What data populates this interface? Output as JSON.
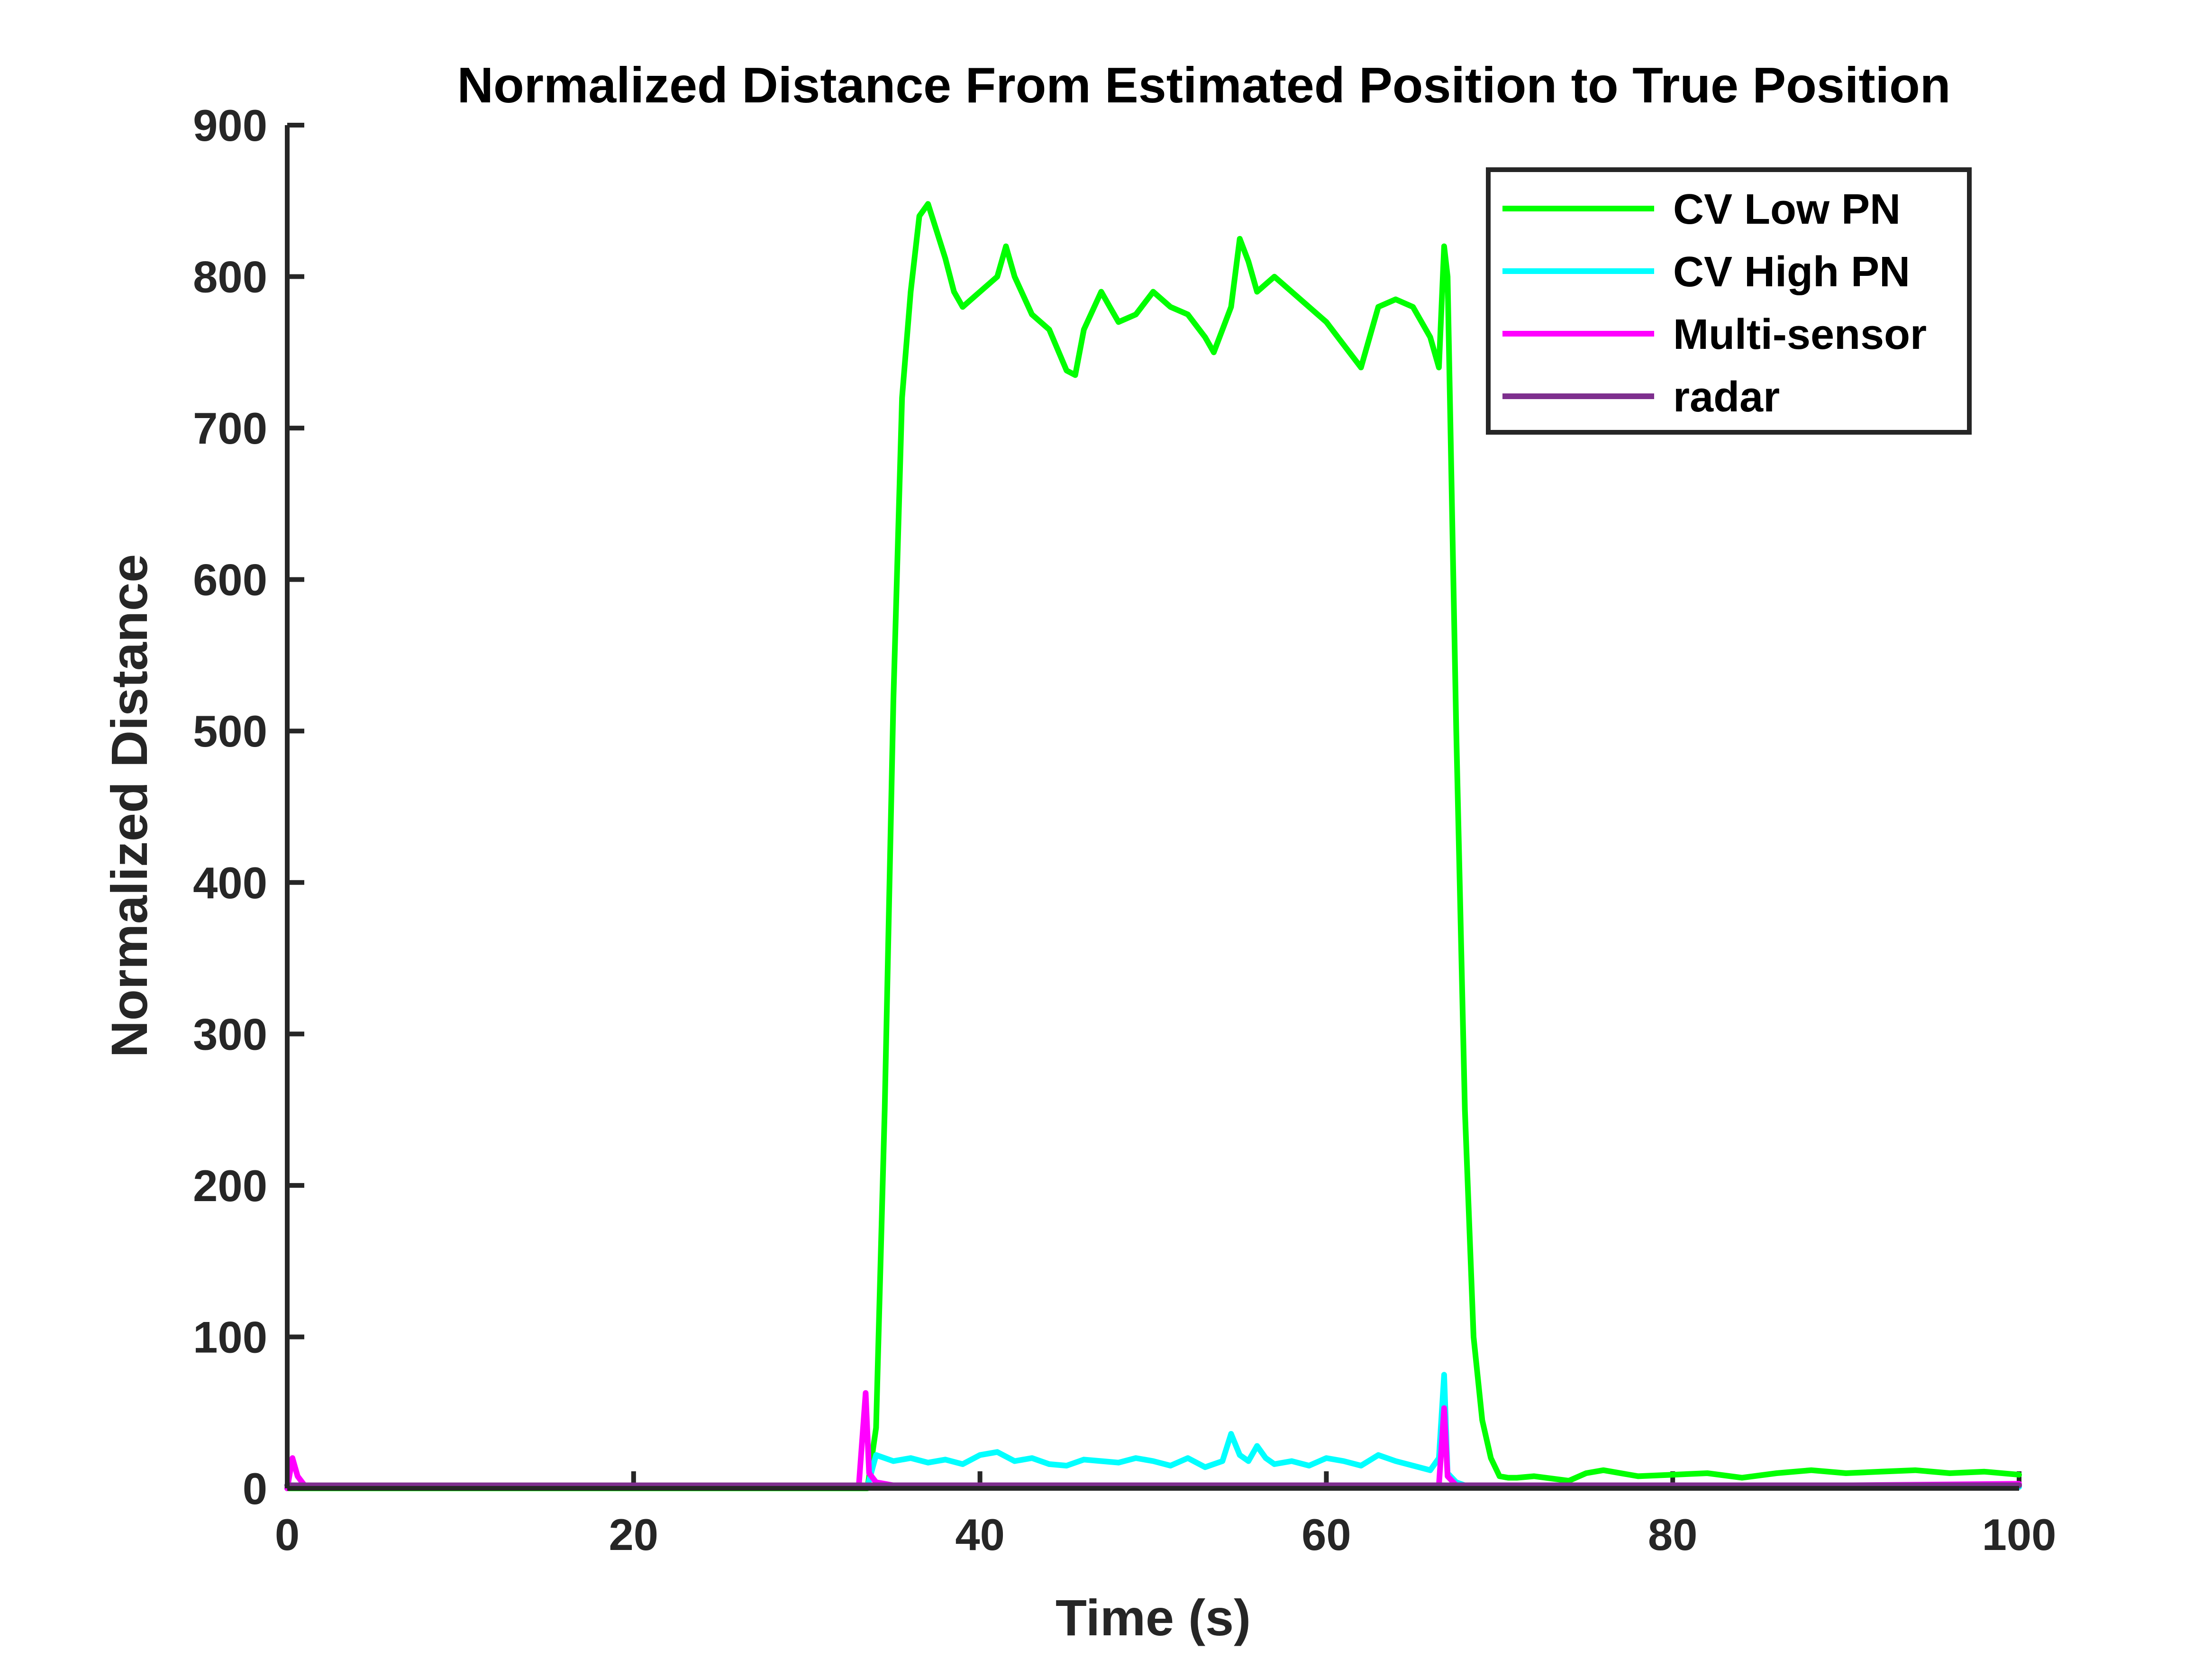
{
  "chart_data": {
    "type": "line",
    "title": "Normalized Distance From Estimated Position to True Position",
    "xlabel": "Time (s)",
    "ylabel": "Normalized Distance",
    "xlim": [
      0,
      100
    ],
    "ylim": [
      0,
      900
    ],
    "xticks": [
      0,
      20,
      40,
      60,
      80,
      100
    ],
    "yticks": [
      0,
      100,
      200,
      300,
      400,
      500,
      600,
      700,
      800,
      900
    ],
    "grid": false,
    "legend_position": "top-right",
    "series": [
      {
        "name": "CV Low PN",
        "color": "#00ff00",
        "x": [
          0,
          20,
          33.5,
          34.0,
          34.5,
          35.0,
          35.5,
          36.0,
          36.5,
          37.0,
          37.5,
          38.0,
          38.5,
          39.0,
          39.5,
          40.0,
          41.0,
          41.5,
          42.0,
          43.0,
          44.0,
          45.0,
          45.5,
          46.0,
          47.0,
          47.5,
          48.0,
          49.0,
          50.0,
          51.0,
          52.0,
          53.0,
          53.5,
          54.0,
          54.5,
          55.0,
          55.5,
          56.0,
          57.0,
          58.0,
          59.0,
          60.0,
          61.0,
          62.0,
          63.0,
          64.0,
          65.0,
          66.0,
          66.5,
          66.8,
          67.0,
          67.5,
          68.0,
          68.5,
          69.0,
          69.5,
          70.0,
          70.5,
          71.0,
          72.0,
          74.0,
          75.0,
          76.0,
          78.0,
          80.0,
          82.0,
          84.0,
          86.0,
          88.0,
          90.0,
          92.0,
          94.0,
          96.0,
          98.0,
          100.0
        ],
        "y": [
          0,
          0,
          0,
          40,
          250,
          520,
          720,
          790,
          840,
          848,
          830,
          812,
          790,
          780,
          785,
          790,
          800,
          820,
          800,
          775,
          765,
          738,
          735,
          765,
          790,
          780,
          770,
          775,
          790,
          780,
          775,
          760,
          750,
          765,
          780,
          825,
          810,
          790,
          800,
          790,
          780,
          770,
          755,
          740,
          780,
          785,
          780,
          760,
          740,
          820,
          800,
          500,
          250,
          100,
          45,
          20,
          8,
          7,
          7,
          8,
          5,
          10,
          12,
          8,
          9,
          10,
          7,
          10,
          12,
          10,
          11,
          12,
          10,
          11,
          9
        ]
      },
      {
        "name": "CV High PN",
        "color": "#00ffff",
        "x": [
          0,
          10,
          20,
          33.5,
          34.0,
          35.0,
          36.0,
          37.0,
          38.0,
          39.0,
          40.0,
          41.0,
          42.0,
          43.0,
          44.0,
          45.0,
          46.0,
          47.0,
          48.0,
          49.0,
          50.0,
          51.0,
          52.0,
          53.0,
          54.0,
          54.5,
          55.0,
          55.5,
          56.0,
          56.5,
          57.0,
          58.0,
          59.0,
          60.0,
          61.0,
          62.0,
          63.0,
          64.0,
          65.0,
          66.0,
          66.5,
          66.8,
          67.0,
          67.5,
          68.0,
          70.0,
          80.0,
          90.0,
          100.0
        ],
        "y": [
          2,
          1,
          1,
          1,
          22,
          18,
          20,
          17,
          19,
          16,
          22,
          24,
          18,
          20,
          16,
          15,
          19,
          18,
          17,
          20,
          18,
          15,
          20,
          14,
          18,
          36,
          22,
          18,
          28,
          20,
          16,
          18,
          15,
          20,
          18,
          15,
          22,
          18,
          15,
          12,
          20,
          75,
          10,
          4,
          2,
          1,
          1,
          1,
          1
        ]
      },
      {
        "name": "Multi-sensor",
        "color": "#ff00ff",
        "x": [
          0,
          0.3,
          0.6,
          1.0,
          5.0,
          20.0,
          33.0,
          33.4,
          33.6,
          34.0,
          35.0,
          40.0,
          50.0,
          60.0,
          66.5,
          66.8,
          67.0,
          67.5,
          70.0,
          80.0,
          90.0,
          100.0
        ],
        "y": [
          0,
          20,
          8,
          2,
          1,
          1,
          1,
          63,
          10,
          4,
          2,
          2,
          2,
          2,
          2,
          53,
          8,
          2,
          2,
          2,
          2,
          3
        ]
      },
      {
        "name": "radar",
        "color": "#7e2f8e",
        "x": [
          0,
          10,
          20,
          30,
          40,
          50,
          60,
          70,
          80,
          90,
          100
        ],
        "y": [
          2,
          2,
          2,
          2,
          2,
          2,
          2,
          2,
          2,
          2,
          2
        ]
      }
    ]
  }
}
